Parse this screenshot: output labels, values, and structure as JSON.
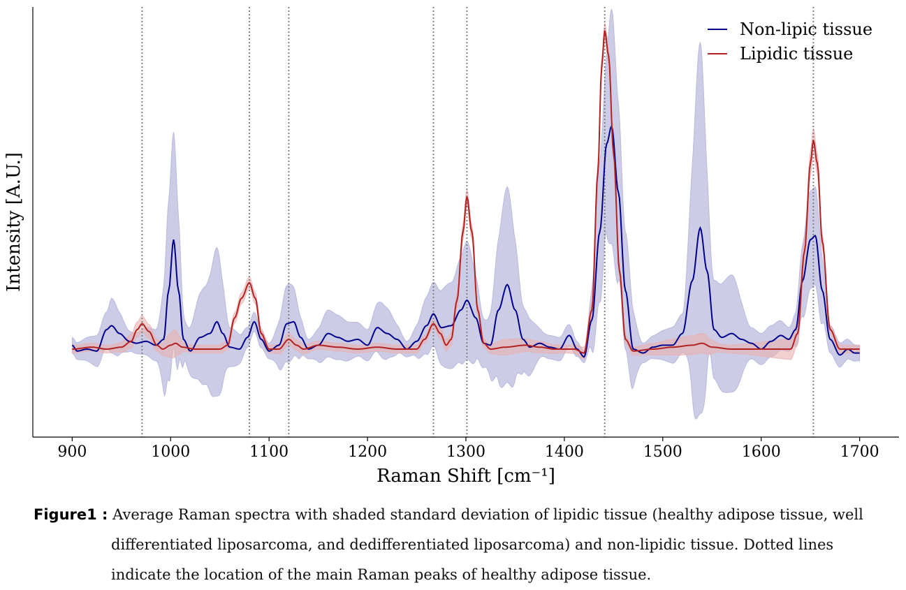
{
  "chart_data": {
    "type": "line",
    "xlabel": "Raman Shift [cm⁻¹]",
    "ylabel": "Intensity [A.U.]",
    "xlim": [
      860,
      1740
    ],
    "ylim": [
      -0.45,
      1.75
    ],
    "x_ticks": [
      900,
      1000,
      1100,
      1200,
      1300,
      1400,
      1500,
      1600,
      1700
    ],
    "y_tick_labels_shown": false,
    "grid": false,
    "legend_position": "top-right",
    "peak_markers_x": [
      971,
      1080,
      1120,
      1267,
      1301,
      1441,
      1653
    ],
    "peak_marker_style": "dotted gray vertical line",
    "series": [
      {
        "name": "Non-lipic tissue",
        "color": "#00008b",
        "band_color": "#b0b0d8",
        "mean": [
          [
            900,
            0.02
          ],
          [
            905,
            -0.01
          ],
          [
            915,
            0.0
          ],
          [
            925,
            -0.01
          ],
          [
            935,
            0.1
          ],
          [
            940,
            0.12
          ],
          [
            948,
            0.08
          ],
          [
            958,
            0.04
          ],
          [
            965,
            0.03
          ],
          [
            975,
            0.04
          ],
          [
            985,
            0.02
          ],
          [
            993,
            0.05
          ],
          [
            998,
            0.3
          ],
          [
            1003,
            0.56
          ],
          [
            1008,
            0.3
          ],
          [
            1013,
            0.05
          ],
          [
            1020,
            -0.01
          ],
          [
            1030,
            0.06
          ],
          [
            1040,
            0.08
          ],
          [
            1047,
            0.14
          ],
          [
            1053,
            0.08
          ],
          [
            1060,
            0.01
          ],
          [
            1070,
            0.0
          ],
          [
            1078,
            0.06
          ],
          [
            1085,
            0.14
          ],
          [
            1092,
            0.05
          ],
          [
            1100,
            -0.01
          ],
          [
            1110,
            0.02
          ],
          [
            1118,
            0.13
          ],
          [
            1125,
            0.14
          ],
          [
            1132,
            0.06
          ],
          [
            1140,
            0.0
          ],
          [
            1150,
            0.02
          ],
          [
            1160,
            0.08
          ],
          [
            1170,
            0.06
          ],
          [
            1180,
            0.04
          ],
          [
            1190,
            0.05
          ],
          [
            1200,
            0.02
          ],
          [
            1210,
            0.11
          ],
          [
            1220,
            0.08
          ],
          [
            1230,
            0.05
          ],
          [
            1240,
            0.0
          ],
          [
            1250,
            0.04
          ],
          [
            1260,
            0.12
          ],
          [
            1267,
            0.18
          ],
          [
            1275,
            0.11
          ],
          [
            1285,
            0.12
          ],
          [
            1295,
            0.2
          ],
          [
            1301,
            0.25
          ],
          [
            1310,
            0.16
          ],
          [
            1318,
            0.03
          ],
          [
            1325,
            0.02
          ],
          [
            1333,
            0.2
          ],
          [
            1342,
            0.33
          ],
          [
            1350,
            0.2
          ],
          [
            1358,
            0.05
          ],
          [
            1365,
            0.01
          ],
          [
            1375,
            0.03
          ],
          [
            1385,
            0.01
          ],
          [
            1395,
            0.0
          ],
          [
            1405,
            0.07
          ],
          [
            1413,
            0.0
          ],
          [
            1420,
            -0.04
          ],
          [
            1428,
            0.15
          ],
          [
            1436,
            0.6
          ],
          [
            1443,
            1.05
          ],
          [
            1448,
            1.14
          ],
          [
            1455,
            0.8
          ],
          [
            1462,
            0.3
          ],
          [
            1470,
            0.0
          ],
          [
            1480,
            -0.02
          ],
          [
            1490,
            0.01
          ],
          [
            1500,
            0.02
          ],
          [
            1510,
            0.02
          ],
          [
            1520,
            0.08
          ],
          [
            1530,
            0.35
          ],
          [
            1538,
            0.62
          ],
          [
            1545,
            0.4
          ],
          [
            1552,
            0.1
          ],
          [
            1560,
            0.06
          ],
          [
            1570,
            0.08
          ],
          [
            1580,
            0.05
          ],
          [
            1590,
            0.03
          ],
          [
            1600,
            0.0
          ],
          [
            1610,
            0.04
          ],
          [
            1620,
            0.07
          ],
          [
            1628,
            0.05
          ],
          [
            1635,
            0.1
          ],
          [
            1642,
            0.35
          ],
          [
            1650,
            0.56
          ],
          [
            1655,
            0.58
          ],
          [
            1662,
            0.3
          ],
          [
            1670,
            0.05
          ],
          [
            1680,
            -0.03
          ],
          [
            1688,
            0.0
          ],
          [
            1695,
            -0.02
          ],
          [
            1700,
            -0.02
          ]
        ],
        "band_width": [
          [
            900,
            0.04
          ],
          [
            935,
            0.09
          ],
          [
            940,
            0.14
          ],
          [
            960,
            0.05
          ],
          [
            985,
            0.08
          ],
          [
            1003,
            0.55
          ],
          [
            1015,
            0.1
          ],
          [
            1035,
            0.25
          ],
          [
            1047,
            0.38
          ],
          [
            1060,
            0.1
          ],
          [
            1080,
            0.05
          ],
          [
            1100,
            0.04
          ],
          [
            1120,
            0.2
          ],
          [
            1140,
            0.05
          ],
          [
            1160,
            0.12
          ],
          [
            1200,
            0.08
          ],
          [
            1215,
            0.14
          ],
          [
            1240,
            0.04
          ],
          [
            1265,
            0.16
          ],
          [
            1285,
            0.22
          ],
          [
            1301,
            0.3
          ],
          [
            1320,
            0.12
          ],
          [
            1342,
            0.5
          ],
          [
            1360,
            0.16
          ],
          [
            1380,
            0.06
          ],
          [
            1400,
            0.06
          ],
          [
            1420,
            0.03
          ],
          [
            1440,
            0.4
          ],
          [
            1448,
            0.6
          ],
          [
            1462,
            0.3
          ],
          [
            1480,
            0.05
          ],
          [
            1520,
            0.1
          ],
          [
            1538,
            0.95
          ],
          [
            1550,
            0.25
          ],
          [
            1570,
            0.3
          ],
          [
            1590,
            0.08
          ],
          [
            1615,
            0.08
          ],
          [
            1630,
            0.06
          ],
          [
            1650,
            0.25
          ],
          [
            1655,
            0.25
          ],
          [
            1670,
            0.07
          ],
          [
            1700,
            0.04
          ]
        ]
      },
      {
        "name": "Lipidic tissue",
        "color": "#b22222",
        "band_color": "#e8b0b0",
        "mean": [
          [
            900,
            0.0
          ],
          [
            920,
            0.01
          ],
          [
            935,
            0.0
          ],
          [
            950,
            0.01
          ],
          [
            960,
            0.04
          ],
          [
            966,
            0.1
          ],
          [
            971,
            0.13
          ],
          [
            978,
            0.09
          ],
          [
            986,
            0.02
          ],
          [
            992,
            0.0
          ],
          [
            1000,
            0.02
          ],
          [
            1005,
            0.03
          ],
          [
            1012,
            0.01
          ],
          [
            1025,
            0.0
          ],
          [
            1040,
            0.0
          ],
          [
            1050,
            0.0
          ],
          [
            1058,
            0.02
          ],
          [
            1065,
            0.16
          ],
          [
            1072,
            0.26
          ],
          [
            1080,
            0.34
          ],
          [
            1086,
            0.26
          ],
          [
            1092,
            0.08
          ],
          [
            1100,
            0.0
          ],
          [
            1110,
            0.0
          ],
          [
            1120,
            0.05
          ],
          [
            1128,
            0.02
          ],
          [
            1135,
            0.0
          ],
          [
            1150,
            0.02
          ],
          [
            1170,
            0.01
          ],
          [
            1190,
            0.0
          ],
          [
            1210,
            0.01
          ],
          [
            1230,
            0.0
          ],
          [
            1250,
            0.0
          ],
          [
            1258,
            0.05
          ],
          [
            1267,
            0.13
          ],
          [
            1274,
            0.08
          ],
          [
            1280,
            0.02
          ],
          [
            1285,
            0.05
          ],
          [
            1291,
            0.25
          ],
          [
            1297,
            0.6
          ],
          [
            1301,
            0.78
          ],
          [
            1306,
            0.6
          ],
          [
            1312,
            0.2
          ],
          [
            1318,
            0.03
          ],
          [
            1325,
            0.0
          ],
          [
            1340,
            0.01
          ],
          [
            1360,
            0.02
          ],
          [
            1375,
            0.01
          ],
          [
            1390,
            0.0
          ],
          [
            1410,
            0.0
          ],
          [
            1420,
            -0.02
          ],
          [
            1428,
            0.2
          ],
          [
            1434,
            0.9
          ],
          [
            1438,
            1.45
          ],
          [
            1441,
            1.63
          ],
          [
            1445,
            1.5
          ],
          [
            1450,
            1.0
          ],
          [
            1456,
            0.4
          ],
          [
            1462,
            0.05
          ],
          [
            1470,
            -0.01
          ],
          [
            1490,
            0.0
          ],
          [
            1510,
            0.01
          ],
          [
            1530,
            0.02
          ],
          [
            1540,
            0.03
          ],
          [
            1550,
            0.01
          ],
          [
            1570,
            0.0
          ],
          [
            1600,
            0.0
          ],
          [
            1630,
            0.0
          ],
          [
            1637,
            0.08
          ],
          [
            1644,
            0.5
          ],
          [
            1650,
            0.95
          ],
          [
            1653,
            1.07
          ],
          [
            1657,
            0.95
          ],
          [
            1662,
            0.55
          ],
          [
            1670,
            0.1
          ],
          [
            1680,
            0.0
          ],
          [
            1700,
            0.0
          ]
        ],
        "band_width": [
          [
            900,
            0.02
          ],
          [
            940,
            0.02
          ],
          [
            970,
            0.04
          ],
          [
            990,
            0.03
          ],
          [
            1003,
            0.07
          ],
          [
            1015,
            0.02
          ],
          [
            1040,
            0.02
          ],
          [
            1080,
            0.03
          ],
          [
            1100,
            0.02
          ],
          [
            1120,
            0.03
          ],
          [
            1150,
            0.02
          ],
          [
            1260,
            0.02
          ],
          [
            1301,
            0.04
          ],
          [
            1320,
            0.02
          ],
          [
            1340,
            0.04
          ],
          [
            1370,
            0.03
          ],
          [
            1400,
            0.02
          ],
          [
            1441,
            0.04
          ],
          [
            1460,
            0.02
          ],
          [
            1540,
            0.05
          ],
          [
            1560,
            0.02
          ],
          [
            1653,
            0.06
          ],
          [
            1670,
            0.02
          ],
          [
            1700,
            0.02
          ]
        ]
      }
    ]
  },
  "caption": {
    "label": "Figure1 :",
    "text": "Average Raman spectra with shaded standard deviation of lipidic tissue (healthy adipose tissue, well differentiated liposarcoma, and dedifferentiated liposarcoma) and non-lipidic tissue. Dotted lines indicate the location of the main Raman peaks of healthy adipose tissue."
  }
}
